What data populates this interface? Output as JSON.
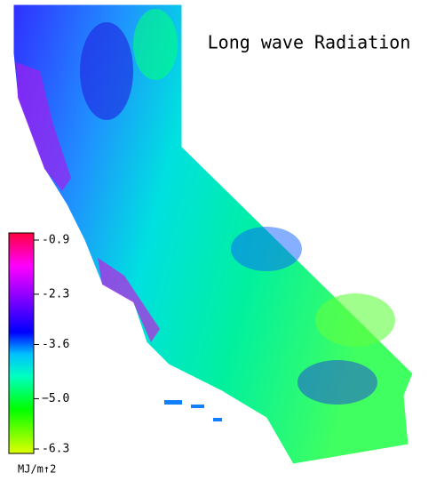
{
  "title": "Long wave Radiation",
  "colorbar": {
    "ticks": [
      -0.9,
      -2.3,
      -3.6,
      {
        "value": -5,
        "label": "−5.0"
      },
      -6.3
    ],
    "unit": "MJ/m↑2"
  }
}
